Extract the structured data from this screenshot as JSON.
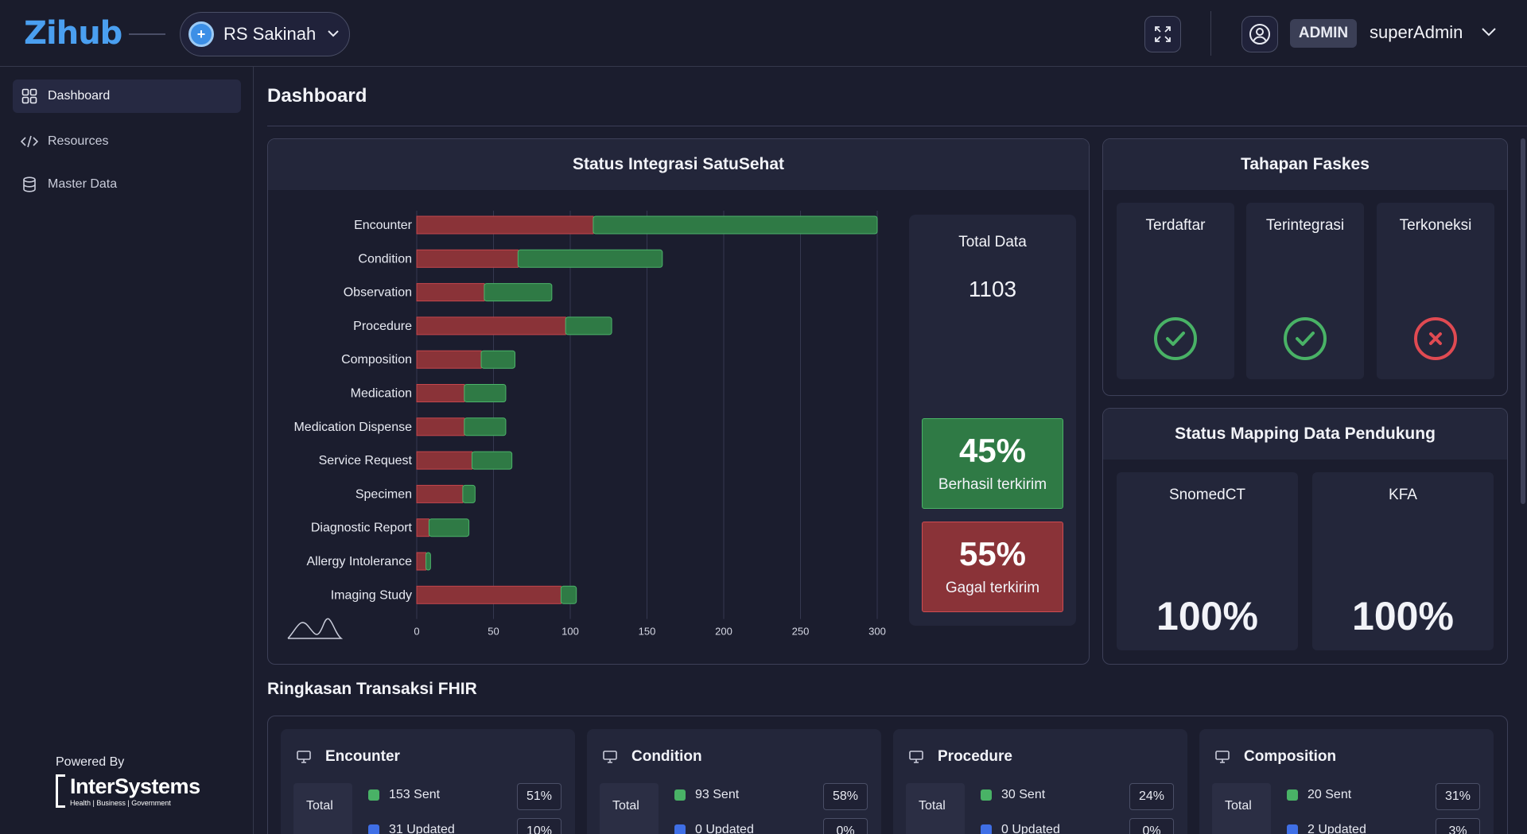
{
  "header": {
    "logo_text": "Zihub",
    "hospital_name": "RS Sakinah",
    "role": "ADMIN",
    "user_name": "superAdmin"
  },
  "sidebar": {
    "items": [
      {
        "label": "Dashboard",
        "icon": "grid-icon"
      },
      {
        "label": "Resources",
        "icon": "code-icon"
      },
      {
        "label": "Master Data",
        "icon": "database-icon"
      }
    ],
    "powered_by": "Powered By",
    "brand_name": "InterSystems",
    "brand_sub": "Health | Business | Government"
  },
  "page_title": "Dashboard",
  "status_integrasi": {
    "title": "Status Integrasi SatuSehat",
    "total_label": "Total Data",
    "total_value": "1103",
    "success_pct": "45%",
    "success_label": "Berhasil terkirim",
    "fail_pct": "55%",
    "fail_label": "Gagal terkirim"
  },
  "chart_data": {
    "type": "bar",
    "orientation": "horizontal",
    "stacked": true,
    "categories": [
      "Encounter",
      "Condition",
      "Observation",
      "Procedure",
      "Composition",
      "Medication",
      "Medication Dispense",
      "Service Request",
      "Specimen",
      "Diagnostic Report",
      "Allergy Intolerance",
      "Imaging Study"
    ],
    "series": [
      {
        "color": "#8a3338",
        "values": [
          115,
          66,
          44,
          97,
          42,
          31,
          31,
          36,
          30,
          8,
          6,
          94
        ]
      },
      {
        "color": "#2f7a45",
        "values": [
          185,
          94,
          44,
          30,
          22,
          27,
          27,
          26,
          8,
          26,
          3,
          10
        ]
      }
    ],
    "xlim": [
      0,
      300
    ],
    "xticks": [
      0,
      50,
      100,
      150,
      200,
      250,
      300
    ],
    "grid": true
  },
  "tahapan_faskes": {
    "title": "Tahapan Faskes",
    "stages": [
      {
        "label": "Terdaftar",
        "status": "ok"
      },
      {
        "label": "Terintegrasi",
        "status": "ok"
      },
      {
        "label": "Terkoneksi",
        "status": "fail"
      }
    ]
  },
  "mapping": {
    "title": "Status Mapping Data Pendukung",
    "items": [
      {
        "label": "SnomedCT",
        "value": "100%"
      },
      {
        "label": "KFA",
        "value": "100%"
      }
    ]
  },
  "ringkasan": {
    "title": "Ringkasan Transaksi FHIR",
    "total_label": "Total",
    "cards": [
      {
        "name": "Encounter",
        "sent": "153 Sent",
        "sent_pct": "51%",
        "updated": "31 Updated",
        "updated_pct": "10%"
      },
      {
        "name": "Condition",
        "sent": "93 Sent",
        "sent_pct": "58%",
        "updated": "0 Updated",
        "updated_pct": "0%"
      },
      {
        "name": "Procedure",
        "sent": "30 Sent",
        "sent_pct": "24%",
        "updated": "0 Updated",
        "updated_pct": "0%"
      },
      {
        "name": "Composition",
        "sent": "20 Sent",
        "sent_pct": "31%",
        "updated": "2 Updated",
        "updated_pct": "3%"
      }
    ]
  }
}
